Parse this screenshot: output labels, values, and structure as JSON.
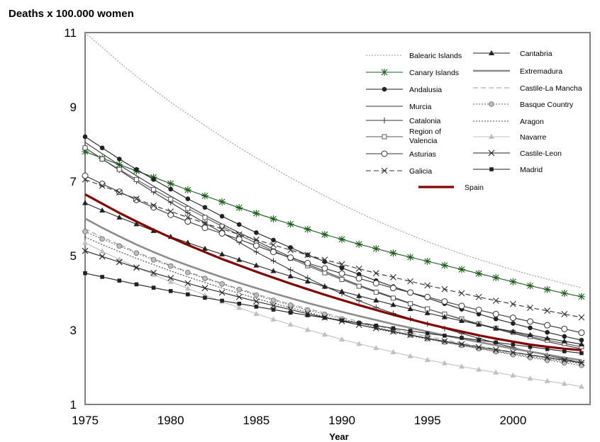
{
  "chart_data": {
    "type": "line",
    "title": "Deaths  x 100.000 women",
    "xlabel": "Year",
    "ylabel": "",
    "xlim": [
      1975,
      2004.5
    ],
    "ylim": [
      1,
      11
    ],
    "xticks": [
      1975,
      1980,
      1985,
      1990,
      1995,
      2000
    ],
    "yticks": [
      1,
      3,
      5,
      7,
      9,
      11
    ],
    "x": [
      1975,
      1976,
      1977,
      1978,
      1979,
      1980,
      1981,
      1982,
      1983,
      1984,
      1985,
      1986,
      1987,
      1988,
      1989,
      1990,
      1991,
      1992,
      1993,
      1994,
      1995,
      1996,
      1997,
      1998,
      1999,
      2000,
      2001,
      2002,
      2003,
      2004
    ],
    "series": [
      {
        "name": "Balearic Islands",
        "color": "#9a9a9a",
        "style": "dotted",
        "marker": "none",
        "values": [
          11,
          10.6,
          10.2,
          9.82,
          9.47,
          9.13,
          8.81,
          8.5,
          8.2,
          7.91,
          7.63,
          7.36,
          7.1,
          6.85,
          6.61,
          6.38,
          6.16,
          5.95,
          5.75,
          5.56,
          5.38,
          5.21,
          5.05,
          4.9,
          4.76,
          4.62,
          4.49,
          4.37,
          4.25,
          4.14
        ]
      },
      {
        "name": "Canary Islands",
        "color": "#1a5c1a",
        "style": "solid",
        "marker": "asterisk",
        "values": [
          7.8,
          7.62,
          7.45,
          7.28,
          7.11,
          6.94,
          6.77,
          6.61,
          6.45,
          6.29,
          6.14,
          5.99,
          5.85,
          5.71,
          5.57,
          5.44,
          5.31,
          5.19,
          5.07,
          4.96,
          4.85,
          4.74,
          4.63,
          4.52,
          4.41,
          4.3,
          4.19,
          4.09,
          3.99,
          3.9
        ]
      },
      {
        "name": "Andalusia",
        "color": "#222222",
        "style": "solid",
        "marker": "filled-circle",
        "values": [
          8.2,
          7.9,
          7.6,
          7.32,
          7.05,
          6.79,
          6.53,
          6.3,
          6.06,
          5.84,
          5.62,
          5.42,
          5.22,
          5.02,
          4.84,
          4.67,
          4.5,
          4.33,
          4.17,
          4.01,
          3.86,
          3.71,
          3.56,
          3.43,
          3.3,
          3.18,
          3.06,
          2.94,
          2.83,
          2.73
        ]
      },
      {
        "name": "Murcia",
        "color": "#333333",
        "style": "solid",
        "marker": "none",
        "values": [
          8.05,
          7.74,
          7.44,
          7.15,
          6.87,
          6.6,
          6.34,
          6.09,
          5.85,
          5.62,
          5.4,
          5.18,
          4.97,
          4.77,
          4.58,
          4.39,
          4.21,
          4.04,
          3.88,
          3.72,
          3.57,
          3.43,
          3.29,
          3.16,
          3.03,
          2.91,
          2.8,
          2.69,
          2.59,
          2.5
        ]
      },
      {
        "name": "Catalonia",
        "color": "#333333",
        "style": "solid",
        "marker": "plus",
        "values": [
          7.9,
          7.6,
          7.3,
          7.0,
          6.71,
          6.43,
          6.15,
          5.88,
          5.62,
          5.36,
          5.1,
          4.86,
          4.62,
          4.4,
          4.18,
          3.98,
          3.79,
          3.61,
          3.45,
          3.31,
          3.17,
          3.04,
          2.91,
          2.78,
          2.65,
          2.53,
          2.42,
          2.32,
          2.22,
          2.13
        ]
      },
      {
        "name": "Region of\nValencia",
        "color": "#555555",
        "style": "solid",
        "marker": "open-square",
        "values": [
          7.9,
          7.6,
          7.32,
          7.05,
          6.78,
          6.52,
          6.27,
          6.03,
          5.79,
          5.56,
          5.34,
          5.13,
          4.93,
          4.73,
          4.54,
          4.36,
          4.18,
          4.02,
          3.86,
          3.71,
          3.57,
          3.43,
          3.3,
          3.17,
          3.05,
          2.94,
          2.83,
          2.73,
          2.64,
          2.55
        ]
      },
      {
        "name": "Asturias",
        "color": "#333333",
        "style": "solid",
        "marker": "open-circle",
        "values": [
          7.15,
          6.93,
          6.72,
          6.5,
          6.3,
          6.1,
          5.92,
          5.75,
          5.6,
          5.44,
          5.27,
          5.1,
          4.95,
          4.8,
          4.66,
          4.52,
          4.39,
          4.26,
          4.13,
          4.01,
          3.89,
          3.77,
          3.65,
          3.54,
          3.43,
          3.33,
          3.23,
          3.13,
          3.03,
          2.93
        ]
      },
      {
        "name": "Galicia",
        "color": "#333333",
        "style": "dashed",
        "marker": "x",
        "values": [
          7.05,
          6.88,
          6.7,
          6.53,
          6.35,
          6.19,
          6.03,
          5.87,
          5.72,
          5.57,
          5.43,
          5.29,
          5.15,
          5.02,
          4.89,
          4.77,
          4.65,
          4.53,
          4.42,
          4.31,
          4.2,
          4.1,
          3.99,
          3.89,
          3.79,
          3.7,
          3.6,
          3.52,
          3.43,
          3.34
        ]
      },
      {
        "name": "Cantabria",
        "color": "#222222",
        "style": "solid",
        "marker": "filled-triangle",
        "values": [
          6.42,
          6.22,
          6.03,
          5.85,
          5.67,
          5.51,
          5.35,
          5.19,
          5.04,
          4.89,
          4.74,
          4.59,
          4.45,
          4.31,
          4.17,
          4.04,
          3.92,
          3.8,
          3.68,
          3.57,
          3.46,
          3.35,
          3.25,
          3.15,
          3.05,
          2.96,
          2.87,
          2.78,
          2.7,
          2.62
        ]
      },
      {
        "name": "Extremadura",
        "color": "#8c8c8c",
        "style": "thick",
        "marker": "none",
        "values": [
          6.0,
          5.75,
          5.52,
          5.3,
          5.1,
          4.91,
          4.74,
          4.58,
          4.42,
          4.27,
          4.13,
          3.99,
          3.86,
          3.73,
          3.61,
          3.49,
          3.38,
          3.27,
          3.16,
          3.06,
          2.96,
          2.86,
          2.77,
          2.68,
          2.59,
          2.5,
          2.42,
          2.34,
          2.26,
          2.19
        ]
      },
      {
        "name": "Castile-La Mancha",
        "color": "#9a9a9a",
        "style": "dashed",
        "marker": "none",
        "values": [
          5.72,
          5.5,
          5.3,
          5.1,
          4.92,
          4.74,
          4.57,
          4.41,
          4.26,
          4.11,
          3.97,
          3.83,
          3.7,
          3.58,
          3.46,
          3.34,
          3.23,
          3.12,
          3.02,
          2.92,
          2.83,
          2.74,
          2.65,
          2.57,
          2.49,
          2.41,
          2.34,
          2.27,
          2.2,
          2.14
        ]
      },
      {
        "name": "Basque Country",
        "color": "#666666",
        "style": "dotted",
        "marker": "gray-circle",
        "values": [
          5.65,
          5.45,
          5.26,
          5.07,
          4.89,
          4.72,
          4.55,
          4.39,
          4.24,
          4.09,
          3.94,
          3.8,
          3.67,
          3.54,
          3.42,
          3.3,
          3.19,
          3.08,
          2.97,
          2.87,
          2.77,
          2.68,
          2.59,
          2.5,
          2.42,
          2.34,
          2.26,
          2.19,
          2.12,
          2.05
        ]
      },
      {
        "name": "Aragon",
        "color": "#444444",
        "style": "dotted",
        "marker": "none",
        "values": [
          5.5,
          5.3,
          5.11,
          4.93,
          4.76,
          4.59,
          4.43,
          4.28,
          4.13,
          3.99,
          3.85,
          3.72,
          3.6,
          3.48,
          3.36,
          3.25,
          3.14,
          3.04,
          2.94,
          2.85,
          2.76,
          2.67,
          2.59,
          2.51,
          2.43,
          2.36,
          2.29,
          2.22,
          2.16,
          2.1
        ]
      },
      {
        "name": "Navarre",
        "color": "#c0c0c0",
        "style": "solid",
        "marker": "filled-triangle",
        "values": [
          5.35,
          5.12,
          4.9,
          4.69,
          4.49,
          4.3,
          4.12,
          3.94,
          3.77,
          3.6,
          3.44,
          3.29,
          3.15,
          3.01,
          2.88,
          2.75,
          2.63,
          2.52,
          2.41,
          2.3,
          2.2,
          2.11,
          2.02,
          1.94,
          1.86,
          1.78,
          1.7,
          1.63,
          1.56,
          1.48
        ]
      },
      {
        "name": "Castile-Leon",
        "color": "#222222",
        "style": "solid",
        "marker": "x",
        "values": [
          5.13,
          4.98,
          4.83,
          4.68,
          4.54,
          4.4,
          4.26,
          4.13,
          4.01,
          3.89,
          3.77,
          3.66,
          3.55,
          3.44,
          3.34,
          3.24,
          3.14,
          3.05,
          2.96,
          2.87,
          2.78,
          2.7,
          2.62,
          2.54,
          2.47,
          2.4,
          2.33,
          2.26,
          2.19,
          2.12
        ]
      },
      {
        "name": "Madrid",
        "color": "#222222",
        "style": "solid",
        "marker": "filled-square",
        "values": [
          4.53,
          4.43,
          4.33,
          4.23,
          4.14,
          4.05,
          3.96,
          3.87,
          3.79,
          3.71,
          3.63,
          3.55,
          3.47,
          3.4,
          3.33,
          3.26,
          3.19,
          3.12,
          3.05,
          2.98,
          2.91,
          2.85,
          2.79,
          2.73,
          2.67,
          2.61,
          2.55,
          2.49,
          2.43,
          2.38
        ]
      },
      {
        "name": "Spain",
        "color": "#800000",
        "style": "bold",
        "marker": "none",
        "values": [
          6.65,
          6.4,
          6.15,
          5.92,
          5.7,
          5.49,
          5.29,
          5.1,
          4.91,
          4.74,
          4.57,
          4.41,
          4.25,
          4.1,
          3.95,
          3.81,
          3.67,
          3.54,
          3.41,
          3.29,
          3.17,
          3.06,
          2.96,
          2.86,
          2.77,
          2.69,
          2.61,
          2.55,
          2.5,
          2.46
        ]
      }
    ],
    "legend": {
      "placement": "top-right",
      "columns": [
        [
          0,
          1,
          2,
          3,
          4,
          5,
          6,
          7
        ],
        [
          8,
          9,
          10,
          11,
          12,
          13,
          14,
          15
        ]
      ],
      "last": 16
    },
    "grid": false
  }
}
